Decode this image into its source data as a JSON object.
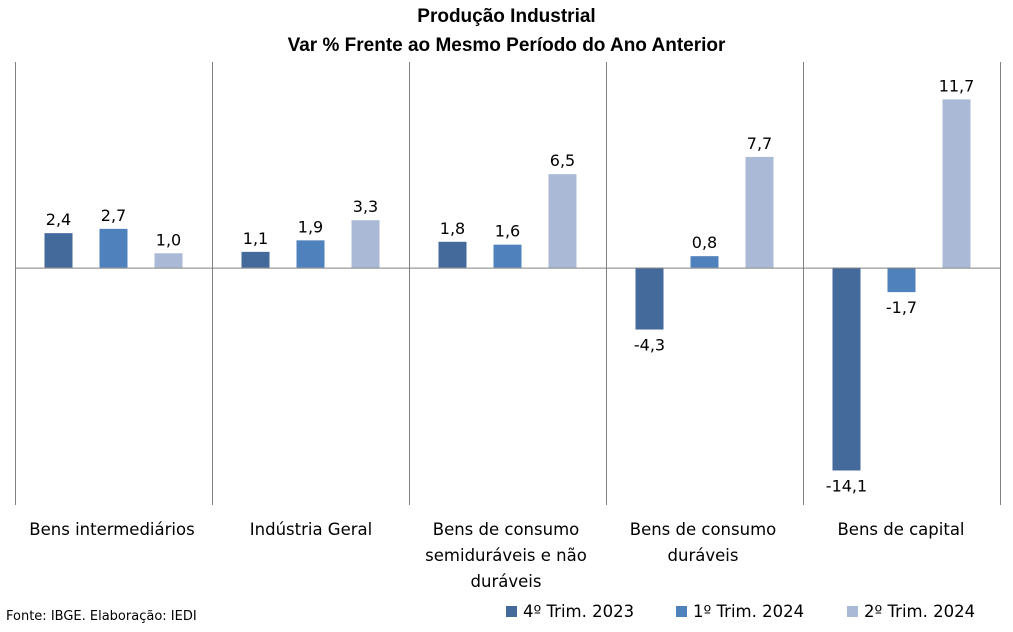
{
  "chart_data": {
    "type": "bar",
    "title": "Produção Industrial",
    "subtitle": "Var % Frente ao Mesmo Período do Ano Anterior",
    "categories": [
      "Bens intermediários",
      "Indústria Geral",
      "Bens de consumo semiduráveis e não duráveis",
      "Bens de consumo duráveis",
      "Bens de capital"
    ],
    "series": [
      {
        "name": "4º Trim. 2023",
        "color": "#44699b",
        "values": [
          2.4,
          1.1,
          1.8,
          -4.3,
          -14.1
        ],
        "labels": [
          "2,4",
          "1,1",
          "1,8",
          "-4,3",
          "-14,1"
        ]
      },
      {
        "name": "1º Trim. 2024",
        "color": "#4f81bd",
        "values": [
          2.7,
          1.9,
          1.6,
          0.8,
          -1.7
        ],
        "labels": [
          "2,7",
          "1,9",
          "1,6",
          "0,8",
          "-1,7"
        ]
      },
      {
        "name": "2º Trim. 2024",
        "color": "#a9b9d6",
        "values": [
          1.0,
          3.3,
          6.5,
          7.7,
          11.7
        ],
        "labels": [
          "1,0",
          "3,3",
          "6,5",
          "7,7",
          "11,7"
        ]
      }
    ],
    "ylim": [
      -16.5,
      14.3
    ],
    "grid": false,
    "legend": "bottom-right",
    "source": "Fonte: IBGE. Elaboração: IEDI"
  }
}
